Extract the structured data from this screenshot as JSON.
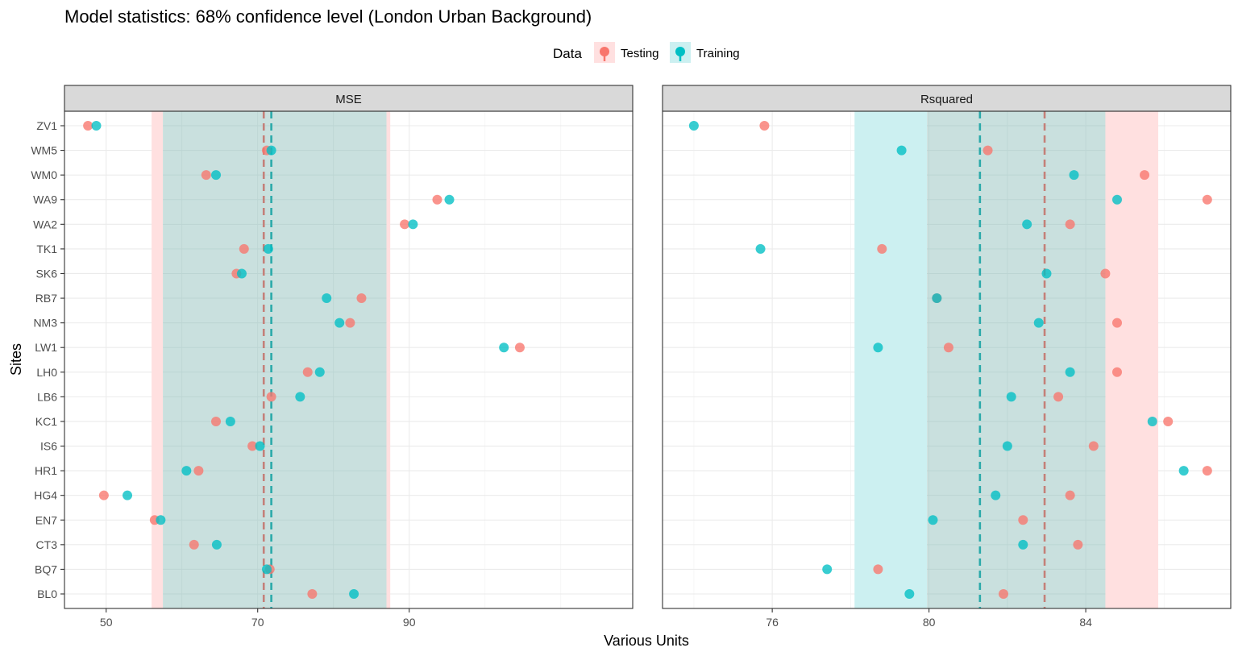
{
  "chart_data": {
    "type": "scatter",
    "title": "Model statistics: 68% confidence level (London Urban Background)",
    "xlabel": "Various Units",
    "ylabel": "Sites",
    "legend": {
      "title": "Data",
      "position": "top",
      "entries": [
        "Testing",
        "Training"
      ]
    },
    "colors": {
      "Testing": "#F8766D",
      "Training": "#00BFC4",
      "Testing_band": "#FFE0E0",
      "Training_band": "#CCF0F1",
      "Overlap_band": "#C9E0DE",
      "Testing_line": "#C48079",
      "Training_line": "#2BAAAA"
    },
    "sites": [
      "ZV1",
      "WM5",
      "WM0",
      "WA9",
      "WA2",
      "TK1",
      "SK6",
      "RB7",
      "NM3",
      "LW1",
      "LH0",
      "LB6",
      "KC1",
      "IS6",
      "HR1",
      "HG4",
      "EN7",
      "CT3",
      "BQ7",
      "BL0"
    ],
    "panels": [
      {
        "strip": "MSE",
        "xlim": [
          44.5,
          119.5
        ],
        "xticks": [
          50,
          70,
          90
        ],
        "grid": true,
        "series": [
          {
            "name": "Testing",
            "values": [
              47.6,
              71.2,
              63.2,
              93.7,
              89.4,
              68.2,
              67.2,
              83.7,
              82.2,
              104.6,
              76.6,
              71.8,
              64.5,
              69.3,
              62.2,
              49.7,
              56.4,
              61.6,
              71.6,
              77.2
            ]
          },
          {
            "name": "Training",
            "values": [
              48.7,
              71.8,
              64.5,
              95.3,
              90.5,
              71.4,
              67.9,
              79.1,
              80.8,
              102.5,
              78.2,
              75.6,
              66.4,
              70.3,
              60.6,
              52.8,
              57.2,
              64.6,
              71.2,
              82.7
            ]
          }
        ],
        "bands": [
          {
            "name": "Testing",
            "range": [
              56.0,
              87.5
            ]
          },
          {
            "name": "Training",
            "range": [
              57.5,
              87.0
            ]
          }
        ],
        "means": [
          {
            "name": "Testing",
            "value": 70.8
          },
          {
            "name": "Training",
            "value": 71.8
          }
        ]
      },
      {
        "strip": "Rsquared",
        "xlim": [
          73.2,
          87.7
        ],
        "xticks": [
          76,
          80,
          84
        ],
        "grid": true,
        "series": [
          {
            "name": "Testing",
            "values": [
              75.8,
              81.5,
              85.5,
              87.1,
              83.6,
              78.8,
              84.5,
              80.2,
              84.8,
              80.5,
              84.8,
              83.3,
              86.1,
              84.2,
              87.1,
              83.6,
              82.4,
              83.8,
              78.7,
              81.9
            ]
          },
          {
            "name": "Training",
            "values": [
              74.0,
              79.3,
              83.7,
              84.8,
              82.5,
              75.7,
              83.0,
              80.2,
              82.8,
              78.7,
              83.6,
              82.1,
              85.7,
              82.0,
              86.5,
              81.7,
              80.1,
              82.4,
              77.4,
              79.5
            ]
          }
        ],
        "bands": [
          {
            "name": "Training",
            "range": [
              78.1,
              84.5
            ]
          },
          {
            "name": "Testing",
            "range": [
              79.95,
              85.85
            ]
          }
        ],
        "means": [
          {
            "name": "Training",
            "value": 81.3
          },
          {
            "name": "Testing",
            "value": 82.95
          }
        ]
      }
    ]
  }
}
